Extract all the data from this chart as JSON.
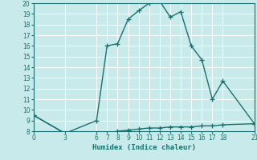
{
  "xlabel": "Humidex (Indice chaleur)",
  "ylabel": "",
  "background_color": "#c8eaea",
  "grid_color": "#b0d8d8",
  "line_color": "#1a7070",
  "xlim": [
    0,
    21
  ],
  "ylim": [
    8,
    20
  ],
  "xticks": [
    0,
    3,
    6,
    7,
    8,
    9,
    10,
    11,
    12,
    13,
    14,
    15,
    16,
    17,
    18,
    21
  ],
  "yticks": [
    8,
    9,
    10,
    11,
    12,
    13,
    14,
    15,
    16,
    17,
    18,
    19,
    20
  ],
  "line1_x": [
    0,
    3,
    6,
    7,
    8,
    9,
    10,
    11,
    12,
    13,
    14,
    15,
    16,
    17,
    18,
    21
  ],
  "line1_y": [
    9.5,
    7.8,
    9.0,
    16.0,
    16.2,
    18.5,
    19.3,
    20.0,
    20.2,
    18.7,
    19.2,
    16.0,
    14.7,
    11.0,
    12.7,
    8.7
  ],
  "line2_x": [
    0,
    3,
    6,
    7,
    8,
    9,
    10,
    11,
    12,
    13,
    14,
    15,
    16,
    17,
    18,
    21
  ],
  "line2_y": [
    9.5,
    7.8,
    7.8,
    7.8,
    8.0,
    8.1,
    8.2,
    8.3,
    8.3,
    8.4,
    8.4,
    8.4,
    8.5,
    8.5,
    8.6,
    8.7
  ],
  "marker": "+",
  "markersize": 4,
  "linewidth": 1.0
}
